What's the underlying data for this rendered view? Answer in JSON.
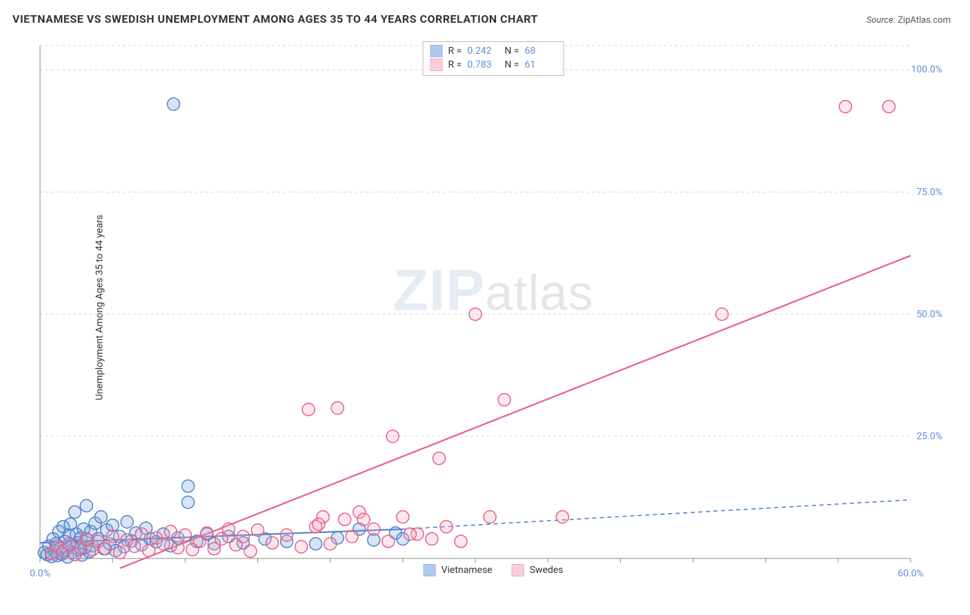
{
  "title": "VIETNAMESE VS SWEDISH UNEMPLOYMENT AMONG AGES 35 TO 44 YEARS CORRELATION CHART",
  "source_label": "Source:",
  "source_value": "ZipAtlas.com",
  "yaxis_title": "Unemployment Among Ages 35 to 44 years",
  "watermark": {
    "part1": "ZIP",
    "part2": "atlas"
  },
  "chart": {
    "type": "scatter",
    "background_color": "#ffffff",
    "grid_color": "#d6d6d6",
    "grid_dash": "4,4",
    "axis_color": "#888888",
    "xlim": [
      0,
      60
    ],
    "ylim": [
      0,
      105
    ],
    "xticks": [
      0,
      5,
      10,
      15,
      20,
      25,
      30,
      35,
      40,
      45,
      50,
      55,
      60
    ],
    "xtick_labels": {
      "0": "0.0%",
      "60": "60.0%"
    },
    "yticks": [
      25,
      50,
      75,
      100
    ],
    "ytick_labels": {
      "25": "25.0%",
      "50": "50.0%",
      "75": "75.0%",
      "100": "100.0%"
    },
    "tick_label_color": "#5b8fd6",
    "tick_label_fontsize": 14,
    "marker_radius": 9,
    "marker_stroke_width": 1.5,
    "marker_fill_opacity": 0.28,
    "line_width": 2.2,
    "series": [
      {
        "key": "vietnamese",
        "label": "Vietnamese",
        "color": "#6e9de0",
        "stroke": "#4f82c9",
        "R": "0.242",
        "N": "68",
        "trend": {
          "x1": 0,
          "y1": 3.2,
          "x2": 25,
          "y2": 6.0,
          "dash_after_x": 25,
          "x3": 60,
          "y3": 12.0
        },
        "points": [
          [
            0.3,
            1.2
          ],
          [
            0.5,
            0.8
          ],
          [
            0.6,
            2.5
          ],
          [
            0.8,
            0.4
          ],
          [
            0.9,
            4.0
          ],
          [
            1.0,
            1.5
          ],
          [
            1.1,
            3.0
          ],
          [
            1.2,
            0.6
          ],
          [
            1.3,
            5.5
          ],
          [
            1.4,
            2.0
          ],
          [
            1.5,
            0.9
          ],
          [
            1.6,
            6.5
          ],
          [
            1.7,
            3.5
          ],
          [
            1.8,
            1.8
          ],
          [
            1.9,
            0.3
          ],
          [
            2.0,
            4.8
          ],
          [
            2.1,
            7.0
          ],
          [
            2.2,
            2.8
          ],
          [
            2.3,
            1.2
          ],
          [
            2.4,
            9.5
          ],
          [
            2.5,
            5.0
          ],
          [
            2.6,
            3.2
          ],
          [
            2.7,
            1.8
          ],
          [
            2.8,
            4.2
          ],
          [
            2.9,
            0.7
          ],
          [
            3.0,
            6.0
          ],
          [
            3.1,
            2.2
          ],
          [
            3.2,
            10.8
          ],
          [
            3.3,
            3.8
          ],
          [
            3.4,
            1.4
          ],
          [
            3.5,
            5.5
          ],
          [
            3.6,
            2.6
          ],
          [
            3.8,
            7.2
          ],
          [
            4.0,
            4.0
          ],
          [
            4.2,
            8.5
          ],
          [
            4.4,
            2.0
          ],
          [
            4.6,
            5.8
          ],
          [
            4.8,
            3.0
          ],
          [
            5.0,
            6.8
          ],
          [
            5.2,
            1.6
          ],
          [
            5.5,
            4.5
          ],
          [
            5.8,
            2.4
          ],
          [
            6.0,
            7.5
          ],
          [
            6.3,
            3.6
          ],
          [
            6.6,
            5.2
          ],
          [
            7.0,
            2.8
          ],
          [
            7.3,
            6.2
          ],
          [
            7.6,
            4.0
          ],
          [
            8.0,
            3.4
          ],
          [
            8.5,
            5.0
          ],
          [
            9.0,
            2.6
          ],
          [
            9.5,
            4.2
          ],
          [
            10.2,
            14.8
          ],
          [
            10.2,
            11.5
          ],
          [
            10.8,
            3.5
          ],
          [
            11.5,
            5.0
          ],
          [
            12.0,
            3.0
          ],
          [
            13.0,
            4.5
          ],
          [
            14.0,
            3.2
          ],
          [
            15.5,
            4.0
          ],
          [
            17.0,
            3.5
          ],
          [
            19.0,
            3.0
          ],
          [
            20.5,
            4.2
          ],
          [
            22.0,
            6.0
          ],
          [
            23.0,
            3.8
          ],
          [
            24.5,
            5.2
          ],
          [
            25.0,
            4.0
          ],
          [
            9.2,
            93.0
          ]
        ]
      },
      {
        "key": "swedes",
        "label": "Swedes",
        "color": "#f4a8bb",
        "stroke": "#e75f87",
        "R": "0.783",
        "N": "61",
        "trend": {
          "x1": 5.5,
          "y1": -2.0,
          "x2": 60,
          "y2": 62.0,
          "dash_after_x": 999,
          "x3": 60,
          "y3": 62.0
        },
        "points": [
          [
            0.8,
            1.0
          ],
          [
            1.2,
            2.5
          ],
          [
            1.6,
            1.5
          ],
          [
            2.0,
            3.0
          ],
          [
            2.4,
            0.8
          ],
          [
            2.8,
            2.2
          ],
          [
            3.2,
            4.0
          ],
          [
            3.6,
            1.8
          ],
          [
            4.0,
            3.5
          ],
          [
            4.5,
            2.0
          ],
          [
            5.0,
            4.5
          ],
          [
            5.5,
            1.2
          ],
          [
            6.0,
            3.8
          ],
          [
            6.5,
            2.5
          ],
          [
            7.0,
            5.0
          ],
          [
            7.5,
            1.6
          ],
          [
            8.0,
            4.2
          ],
          [
            8.5,
            3.0
          ],
          [
            9.0,
            5.5
          ],
          [
            9.5,
            2.2
          ],
          [
            10.0,
            4.8
          ],
          [
            10.5,
            1.8
          ],
          [
            11.0,
            3.5
          ],
          [
            11.5,
            5.2
          ],
          [
            12.0,
            2.0
          ],
          [
            12.5,
            4.0
          ],
          [
            13.0,
            6.0
          ],
          [
            13.5,
            2.8
          ],
          [
            14.0,
            4.5
          ],
          [
            14.5,
            1.5
          ],
          [
            15.0,
            5.8
          ],
          [
            16.0,
            3.2
          ],
          [
            17.0,
            4.8
          ],
          [
            18.0,
            2.4
          ],
          [
            18.5,
            30.5
          ],
          [
            19.0,
            6.5
          ],
          [
            19.5,
            8.5
          ],
          [
            20.0,
            3.0
          ],
          [
            20.5,
            30.8
          ],
          [
            21.0,
            8.0
          ],
          [
            21.5,
            4.5
          ],
          [
            22.0,
            9.5
          ],
          [
            22.3,
            8.0
          ],
          [
            23.0,
            6.0
          ],
          [
            24.0,
            3.5
          ],
          [
            24.3,
            25.0
          ],
          [
            25.0,
            8.5
          ],
          [
            26.0,
            5.0
          ],
          [
            27.0,
            4.0
          ],
          [
            27.5,
            20.5
          ],
          [
            28.0,
            6.5
          ],
          [
            29.0,
            3.5
          ],
          [
            30.0,
            50.0
          ],
          [
            31.0,
            8.5
          ],
          [
            32.0,
            32.5
          ],
          [
            36.0,
            8.5
          ],
          [
            47.0,
            50.0
          ],
          [
            55.5,
            92.5
          ],
          [
            58.5,
            92.5
          ],
          [
            25.5,
            5.0
          ],
          [
            19.2,
            7.0
          ]
        ]
      }
    ]
  },
  "legend": {
    "swatch_size": 18
  }
}
